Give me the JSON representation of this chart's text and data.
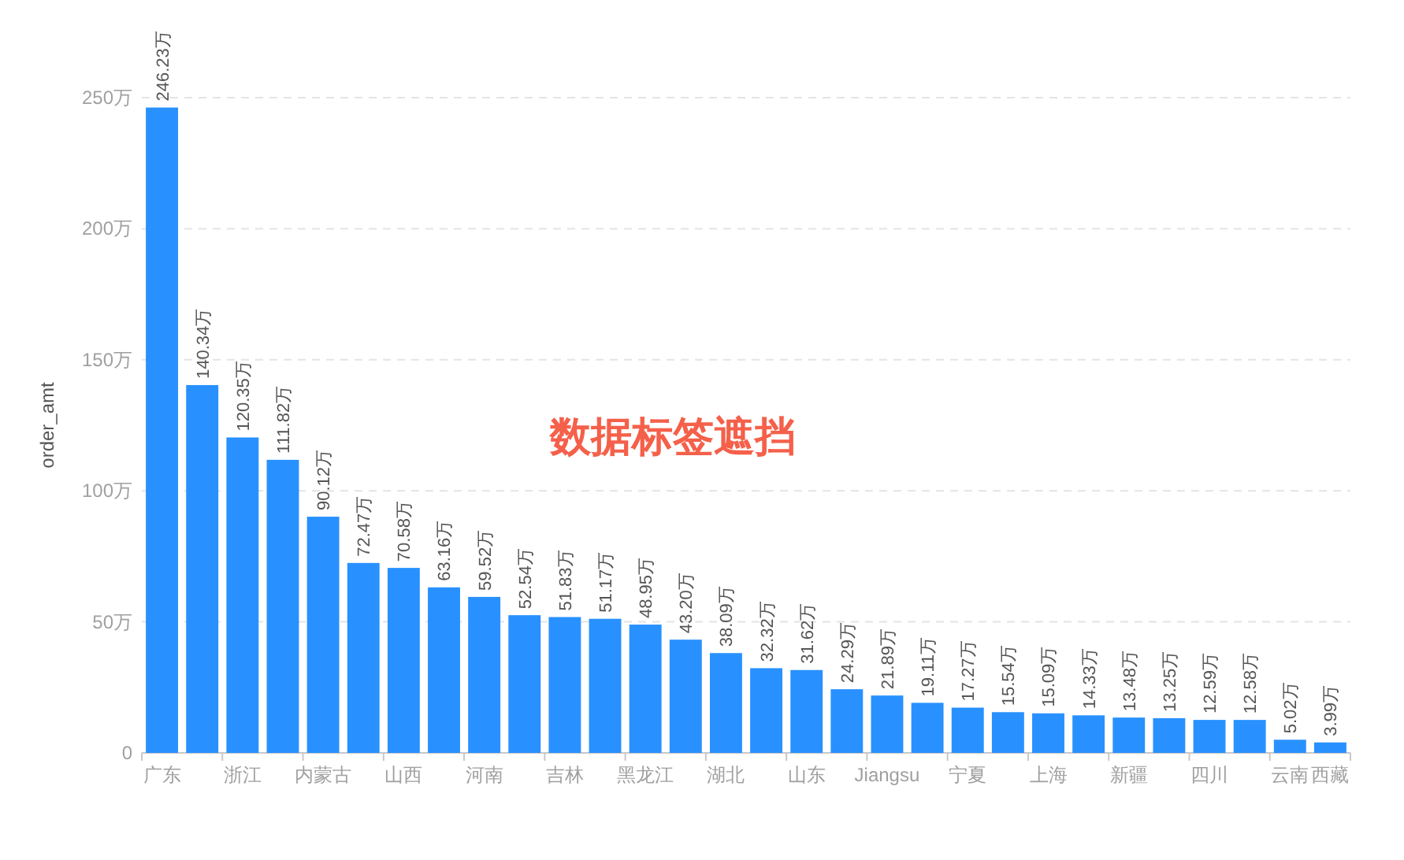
{
  "chart_data": {
    "type": "bar",
    "ylabel": "order_amt",
    "annotations": [
      "数据标签遮挡"
    ],
    "categories": [
      "广东",
      null,
      "浙江",
      null,
      "内蒙古",
      null,
      "山西",
      null,
      "河南",
      null,
      "吉林",
      null,
      "黑龙江",
      null,
      "湖北",
      null,
      "山东",
      null,
      "Jiangsu",
      null,
      "宁夏",
      null,
      "上海",
      null,
      "新疆",
      null,
      "四川",
      null,
      "云南",
      "西藏"
    ],
    "values": [
      246.23,
      140.34,
      120.35,
      111.82,
      90.12,
      72.47,
      70.58,
      63.16,
      59.52,
      52.54,
      51.83,
      51.17,
      48.95,
      43.2,
      38.09,
      32.32,
      31.62,
      24.29,
      21.89,
      19.11,
      17.27,
      15.54,
      15.09,
      14.33,
      13.48,
      13.25,
      12.59,
      12.58,
      5.02,
      3.99
    ],
    "value_labels": [
      "246.23万",
      "140.34万",
      "120.35万",
      "111.82万",
      "90.12万",
      "72.47万",
      "70.58万",
      "63.16万",
      "59.52万",
      "52.54万",
      "51.83万",
      "51.17万",
      "48.95万",
      "43.20万",
      "38.09万",
      "32.32万",
      "31.62万",
      "24.29万",
      "21.89万",
      "19.11万",
      "17.27万",
      "15.54万",
      "15.09万",
      "14.33万",
      "13.48万",
      "13.25万",
      "12.59万",
      "12.58万",
      "5.02万",
      "3.99万"
    ],
    "color": "#2891ff",
    "ylim": [
      0,
      250
    ],
    "yticks": [
      0,
      {
        "value": 50,
        "label": "50万"
      },
      {
        "value": 100,
        "label": "100万"
      },
      {
        "value": 150,
        "label": "150万"
      },
      {
        "value": 200,
        "label": "200万"
      },
      {
        "value": 250,
        "label": "250万"
      }
    ],
    "grid": "y"
  }
}
